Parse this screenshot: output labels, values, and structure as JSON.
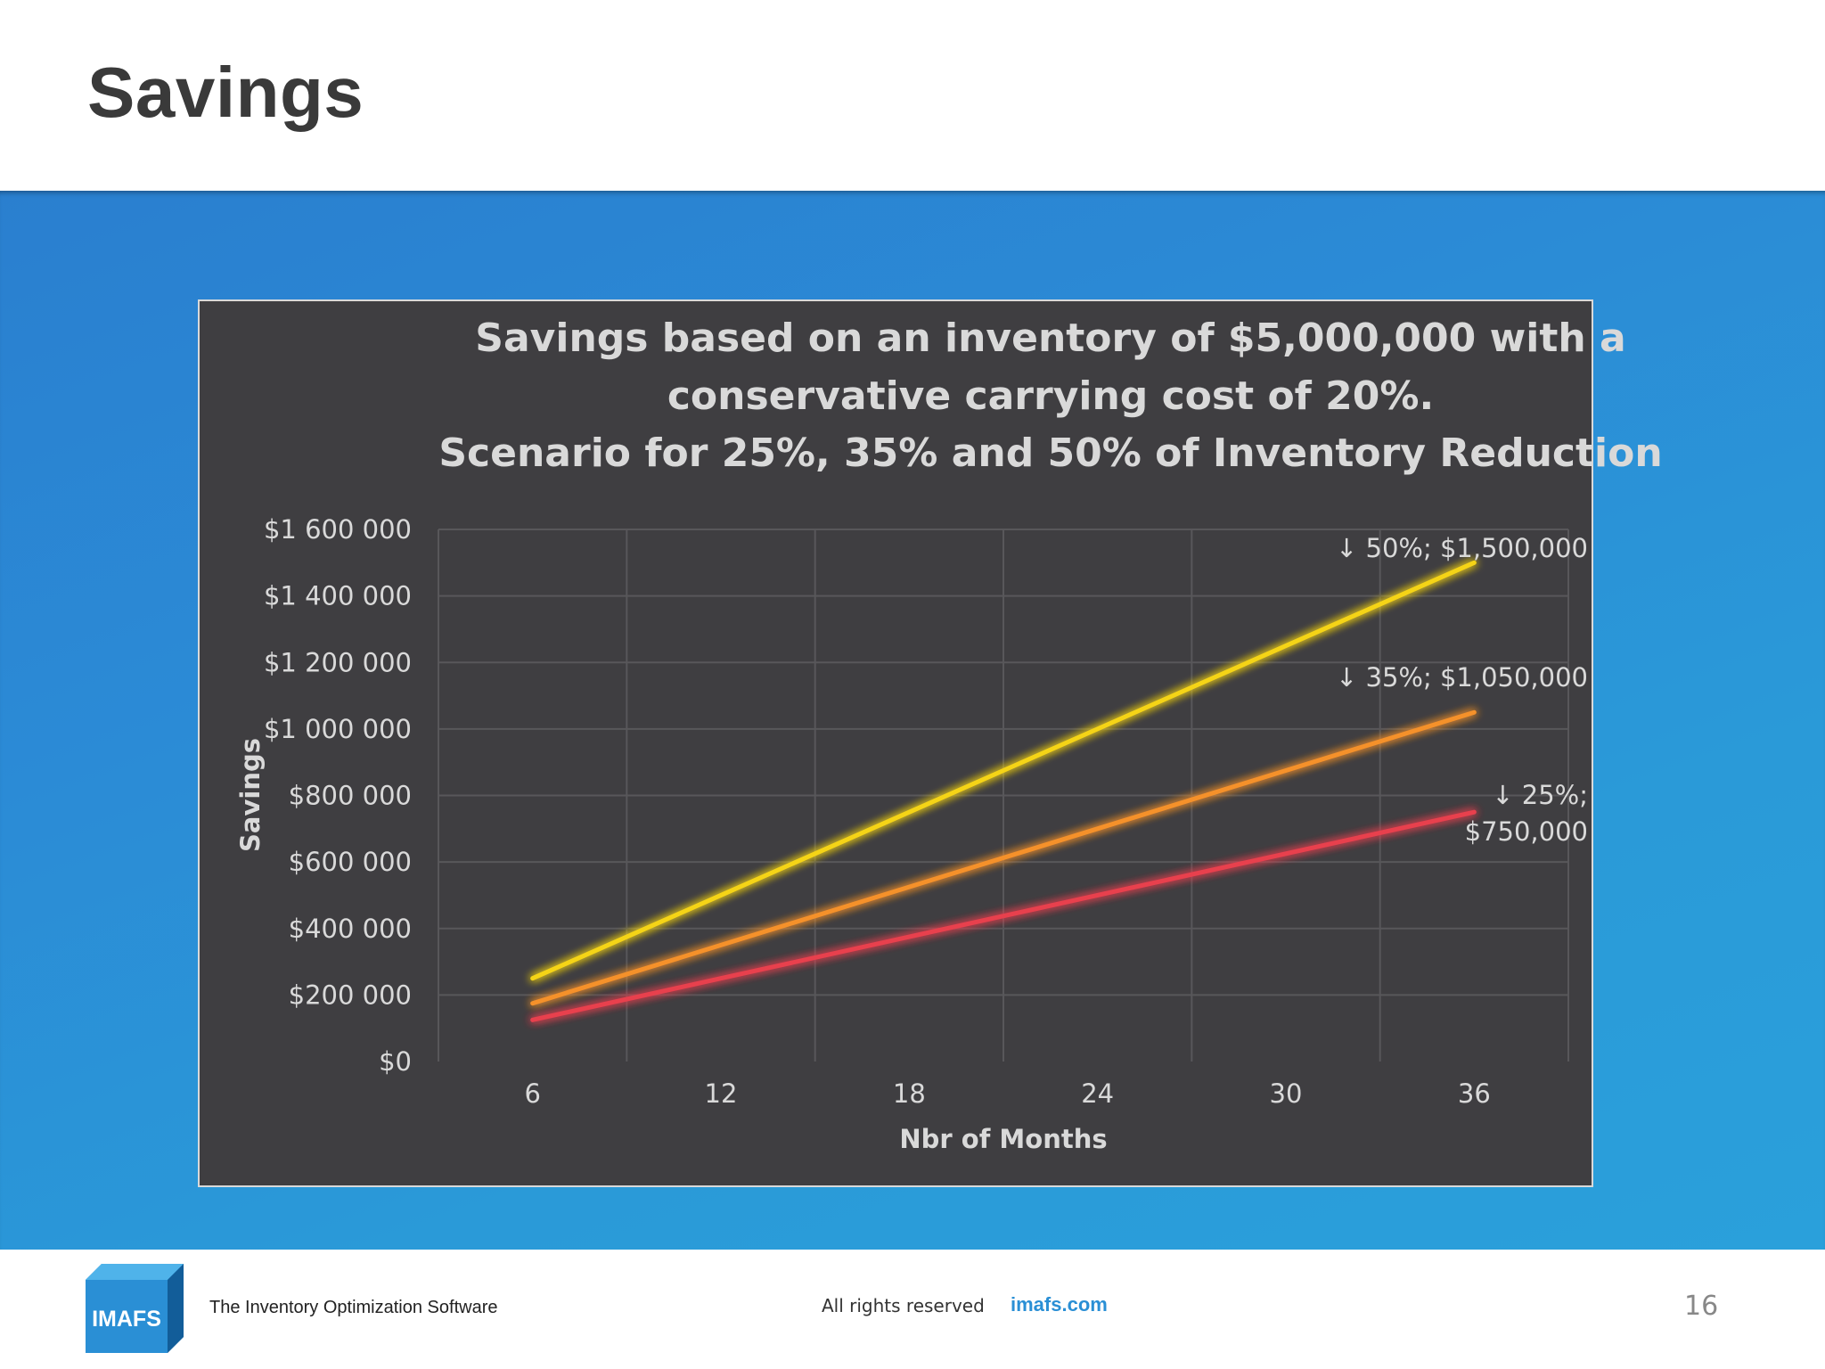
{
  "slide": {
    "title": "Savings",
    "page_number": "16"
  },
  "footer": {
    "logo_text": "IMAFS",
    "tagline": "The Inventory Optimization Software",
    "rights": "All rights reserved",
    "website": "imafs.com"
  },
  "colors": {
    "band": "#2a8fd5",
    "chart_bg": "#3f3e41",
    "series_50": "#f5d417",
    "series_35": "#f5912a",
    "series_25": "#e8404e"
  },
  "chart_data": {
    "type": "line",
    "title_lines": [
      "Savings based on an inventory of $5,000,000 with a",
      "conservative carrying cost of 20%.",
      "Scenario for 25%, 35% and 50% of Inventory Reduction"
    ],
    "xlabel": "Nbr of Months",
    "ylabel": "Savings",
    "x": [
      6,
      12,
      18,
      24,
      30,
      36
    ],
    "x_tick_labels": [
      "6",
      "12",
      "18",
      "24",
      "30",
      "36"
    ],
    "xlim": [
      3,
      39
    ],
    "ylim": [
      0,
      1600000
    ],
    "y_ticks": [
      0,
      200000,
      400000,
      600000,
      800000,
      1000000,
      1200000,
      1400000,
      1600000
    ],
    "y_tick_labels": [
      "$0",
      "$200 000",
      "$400 000",
      "$600 000",
      "$800 000",
      "$1 000 000",
      "$1 200 000",
      "$1 400 000",
      "$1 600 000"
    ],
    "grid": true,
    "series": [
      {
        "name": "50%",
        "color": "#f5d417",
        "values": [
          250000,
          500000,
          750000,
          1000000,
          1250000,
          1500000
        ],
        "annotation": [
          "↓ 50%; $1,500,000"
        ]
      },
      {
        "name": "35%",
        "color": "#f5912a",
        "values": [
          175000,
          350000,
          525000,
          700000,
          875000,
          1050000
        ],
        "annotation": [
          "↓ 35%; $1,050,000"
        ]
      },
      {
        "name": "25%",
        "color": "#e8404e",
        "values": [
          125000,
          250000,
          375000,
          500000,
          625000,
          750000
        ],
        "annotation": [
          "↓ 25%;",
          "$750,000"
        ]
      }
    ]
  }
}
